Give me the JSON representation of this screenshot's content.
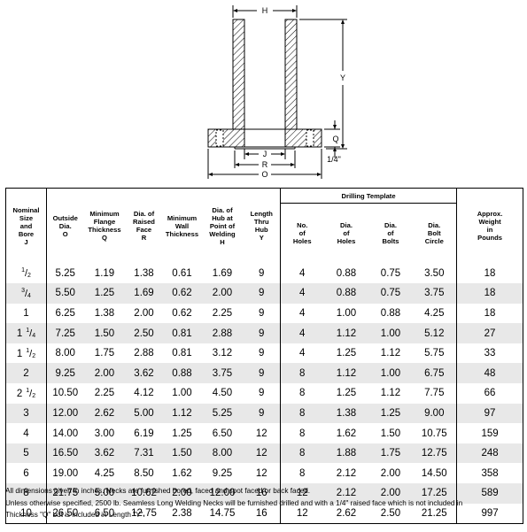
{
  "diagram": {
    "labels": {
      "H": "H",
      "Y": "Y",
      "Q": "Q",
      "quarter": "1/4\"",
      "J": "J",
      "R": "R",
      "O": "O"
    }
  },
  "table": {
    "group_header": "Drilling Template",
    "headers": [
      [
        "Nominal",
        "Size",
        "and",
        "Bore",
        "J"
      ],
      [
        "Outside",
        "Dia.",
        "O"
      ],
      [
        "Minimum",
        "Flange",
        "Thickness",
        "Q"
      ],
      [
        "Dia. of",
        "Raised",
        "Face",
        "R"
      ],
      [
        "Minimum",
        "Wall",
        "Thickness"
      ],
      [
        "Dia. of",
        "Hub at",
        "Point of",
        "Welding",
        "H"
      ],
      [
        "Length",
        "Thru",
        "Hub",
        "Y"
      ],
      [
        "No.",
        "of",
        "Holes"
      ],
      [
        "Dia.",
        "of",
        "Holes"
      ],
      [
        "Dia.",
        "of",
        "Bolts"
      ],
      [
        "Dia.",
        "Bolt",
        "Circle"
      ],
      [
        "Approx.",
        "Weight",
        "in",
        "Pounds"
      ]
    ],
    "rows": [
      {
        "size": {
          "whole": "",
          "num": "1",
          "den": "2"
        },
        "cells": [
          "5.25",
          "1.19",
          "1.38",
          "0.61",
          "1.69",
          "9",
          "4",
          "0.88",
          "0.75",
          "3.50",
          "18"
        ]
      },
      {
        "size": {
          "whole": "",
          "num": "3",
          "den": "4"
        },
        "cells": [
          "5.50",
          "1.25",
          "1.69",
          "0.62",
          "2.00",
          "9",
          "4",
          "0.88",
          "0.75",
          "3.75",
          "18"
        ]
      },
      {
        "size": {
          "whole": "1",
          "num": "",
          "den": ""
        },
        "cells": [
          "6.25",
          "1.38",
          "2.00",
          "0.62",
          "2.25",
          "9",
          "4",
          "1.00",
          "0.88",
          "4.25",
          "18"
        ]
      },
      {
        "size": {
          "whole": "1",
          "num": "1",
          "den": "4"
        },
        "cells": [
          "7.25",
          "1.50",
          "2.50",
          "0.81",
          "2.88",
          "9",
          "4",
          "1.12",
          "1.00",
          "5.12",
          "27"
        ]
      },
      {
        "size": {
          "whole": "1",
          "num": "1",
          "den": "2"
        },
        "cells": [
          "8.00",
          "1.75",
          "2.88",
          "0.81",
          "3.12",
          "9",
          "4",
          "1.25",
          "1.12",
          "5.75",
          "33"
        ]
      },
      {
        "size": {
          "whole": "2",
          "num": "",
          "den": ""
        },
        "cells": [
          "9.25",
          "2.00",
          "3.62",
          "0.88",
          "3.75",
          "9",
          "8",
          "1.12",
          "1.00",
          "6.75",
          "48"
        ]
      },
      {
        "size": {
          "whole": "2",
          "num": "1",
          "den": "2"
        },
        "cells": [
          "10.50",
          "2.25",
          "4.12",
          "1.00",
          "4.50",
          "9",
          "8",
          "1.25",
          "1.12",
          "7.75",
          "66"
        ]
      },
      {
        "size": {
          "whole": "3",
          "num": "",
          "den": ""
        },
        "cells": [
          "12.00",
          "2.62",
          "5.00",
          "1.12",
          "5.25",
          "9",
          "8",
          "1.38",
          "1.25",
          "9.00",
          "97"
        ]
      },
      {
        "size": {
          "whole": "4",
          "num": "",
          "den": ""
        },
        "cells": [
          "14.00",
          "3.00",
          "6.19",
          "1.25",
          "6.50",
          "12",
          "8",
          "1.62",
          "1.50",
          "10.75",
          "159"
        ]
      },
      {
        "size": {
          "whole": "5",
          "num": "",
          "den": ""
        },
        "cells": [
          "16.50",
          "3.62",
          "7.31",
          "1.50",
          "8.00",
          "12",
          "8",
          "1.88",
          "1.75",
          "12.75",
          "248"
        ]
      },
      {
        "size": {
          "whole": "6",
          "num": "",
          "den": ""
        },
        "cells": [
          "19.00",
          "4.25",
          "8.50",
          "1.62",
          "9.25",
          "12",
          "8",
          "2.12",
          "2.00",
          "14.50",
          "358"
        ]
      },
      {
        "size": {
          "whole": "8",
          "num": "",
          "den": ""
        },
        "cells": [
          "21.75",
          "5.00",
          "10.62",
          "2.00",
          "12.00",
          "16",
          "12",
          "2.12",
          "2.00",
          "17.25",
          "589"
        ]
      },
      {
        "size": {
          "whole": "10",
          "num": "",
          "den": ""
        },
        "cells": [
          "26.50",
          "6.50",
          "12.75",
          "2.38",
          "14.75",
          "16",
          "12",
          "2.62",
          "2.50",
          "21.25",
          "997"
        ]
      }
    ]
  },
  "notes": [
    "All dimensions given in inches. Necks are furnished bored, faced and spot faced or back faced.",
    "Unless otherwise specified, 2500 lb. Seamless Long Welding Necks will be furnished drilled and with a 1/4\" raised face which is not included in",
    "Thickness \"Q\" but is included in Length \"Y\"."
  ]
}
